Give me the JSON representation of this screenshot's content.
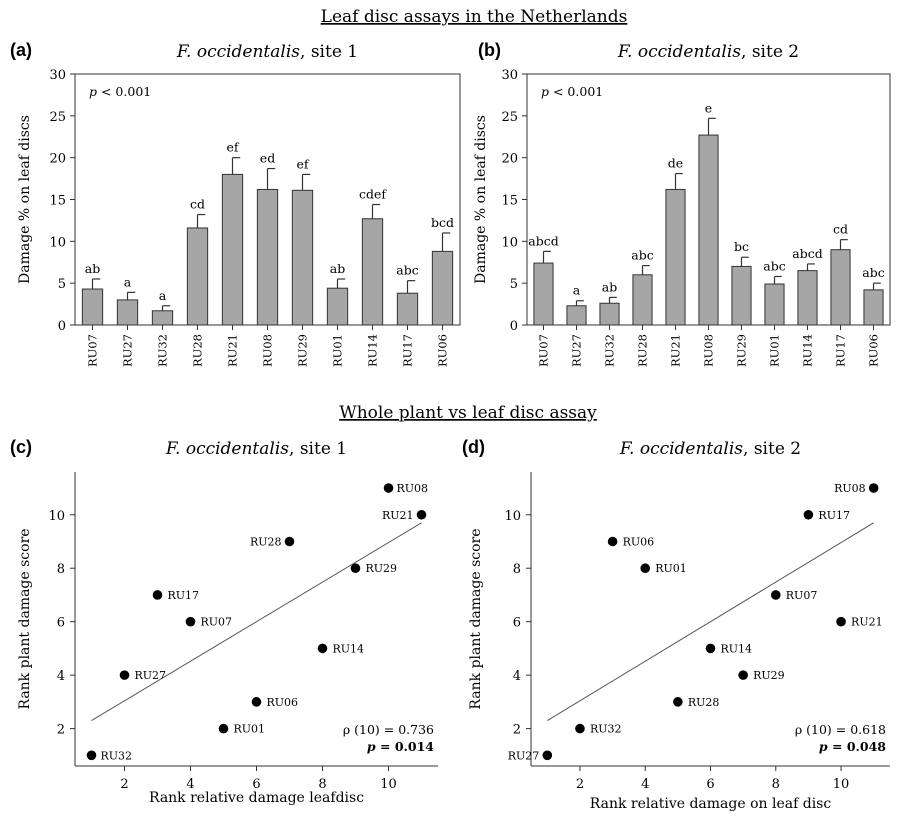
{
  "sections": {
    "top": "Leaf disc assays in the Netherlands",
    "bottom": "Whole plant vs leaf disc assay"
  },
  "chart_data": [
    {
      "type": "bar",
      "panel": "(a)",
      "title_italic": "F. occidentalis",
      "title_rest": ", site 1",
      "ylabel": "Damage % on leaf discs",
      "ylim": [
        0,
        30
      ],
      "yticks": [
        0,
        5,
        10,
        15,
        20,
        25,
        30
      ],
      "annotation": "p < 0.001",
      "categories": [
        "RU07",
        "RU27",
        "RU32",
        "RU28",
        "RU21",
        "RU08",
        "RU29",
        "RU01",
        "RU14",
        "RU17",
        "RU06"
      ],
      "values": [
        4.3,
        3.0,
        1.7,
        11.6,
        18.0,
        16.2,
        16.1,
        4.4,
        12.7,
        3.8,
        8.8
      ],
      "errors": [
        1.2,
        0.9,
        0.6,
        1.6,
        2.0,
        2.5,
        1.9,
        1.1,
        1.7,
        1.5,
        2.2
      ],
      "letters": [
        "ab",
        "a",
        "a",
        "cd",
        "ef",
        "ed",
        "ef",
        "ab",
        "cdef",
        "abc",
        "bcd"
      ]
    },
    {
      "type": "bar",
      "panel": "(b)",
      "title_italic": "F. occidentalis",
      "title_rest": ", site 2",
      "ylabel": "Damage % on leaf discs",
      "ylim": [
        0,
        30
      ],
      "yticks": [
        0,
        5,
        10,
        15,
        20,
        25,
        30
      ],
      "annotation": "p < 0.001",
      "categories": [
        "RU07",
        "RU27",
        "RU32",
        "RU28",
        "RU21",
        "RU08",
        "RU29",
        "RU01",
        "RU14",
        "RU17",
        "RU06"
      ],
      "values": [
        7.4,
        2.3,
        2.6,
        6.0,
        16.2,
        22.7,
        7.0,
        4.9,
        6.5,
        9.0,
        4.2
      ],
      "errors": [
        1.4,
        0.6,
        0.7,
        1.1,
        1.9,
        2.0,
        1.1,
        0.9,
        0.8,
        1.2,
        0.8
      ],
      "letters": [
        "abcd",
        "a",
        "ab",
        "abc",
        "de",
        "e",
        "bc",
        "abc",
        "abcd",
        "cd",
        "abc"
      ]
    },
    {
      "type": "scatter",
      "panel": "(c)",
      "title_italic": "F. occidentalis",
      "title_rest": ", site 1",
      "xlabel": "Rank relative damage leafdisc",
      "ylabel": "Rank plant damage score",
      "xlim": [
        0.5,
        11.5
      ],
      "ylim": [
        0.6,
        11.6
      ],
      "xticks": [
        2,
        4,
        6,
        8,
        10
      ],
      "yticks": [
        2,
        4,
        6,
        8,
        10
      ],
      "points": [
        {
          "label": "RU32",
          "x": 1,
          "y": 1
        },
        {
          "label": "RU27",
          "x": 2,
          "y": 4
        },
        {
          "label": "RU17",
          "x": 3,
          "y": 7
        },
        {
          "label": "RU07",
          "x": 4,
          "y": 6
        },
        {
          "label": "RU01",
          "x": 5,
          "y": 2
        },
        {
          "label": "RU06",
          "x": 6,
          "y": 3
        },
        {
          "label": "RU28",
          "x": 7,
          "y": 9
        },
        {
          "label": "RU14",
          "x": 8,
          "y": 5
        },
        {
          "label": "RU29",
          "x": 9,
          "y": 8
        },
        {
          "label": "RU08",
          "x": 10,
          "y": 11
        },
        {
          "label": "RU21",
          "x": 11,
          "y": 10
        }
      ],
      "trend": {
        "x1": 1,
        "y1": 2.3,
        "x2": 11,
        "y2": 9.7
      },
      "stat_rho": "ρ (10) = 0.736",
      "stat_p": "p = 0.014"
    },
    {
      "type": "scatter",
      "panel": "(d)",
      "title_italic": "F. occidentalis",
      "title_rest": ", site 2",
      "xlabel": "Rank relative damage on leaf disc",
      "ylabel": "Rank plant damage score",
      "xlim": [
        0.5,
        11.5
      ],
      "ylim": [
        0.6,
        11.6
      ],
      "xticks": [
        2,
        4,
        6,
        8,
        10
      ],
      "yticks": [
        2,
        4,
        6,
        8,
        10
      ],
      "points": [
        {
          "label": "RU27",
          "x": 1,
          "y": 1
        },
        {
          "label": "RU32",
          "x": 2,
          "y": 2
        },
        {
          "label": "RU06",
          "x": 3,
          "y": 9
        },
        {
          "label": "RU01",
          "x": 4,
          "y": 8
        },
        {
          "label": "RU28",
          "x": 5,
          "y": 3
        },
        {
          "label": "RU14",
          "x": 6,
          "y": 5
        },
        {
          "label": "RU29",
          "x": 7,
          "y": 4
        },
        {
          "label": "RU07",
          "x": 8,
          "y": 7
        },
        {
          "label": "RU17",
          "x": 9,
          "y": 10
        },
        {
          "label": "RU21",
          "x": 10,
          "y": 6
        },
        {
          "label": "RU08",
          "x": 11,
          "y": 11
        }
      ],
      "trend": {
        "x1": 1,
        "y1": 2.3,
        "x2": 11,
        "y2": 9.7
      },
      "stat_rho": "ρ (10) = 0.618",
      "stat_p": "p = 0.048"
    }
  ]
}
